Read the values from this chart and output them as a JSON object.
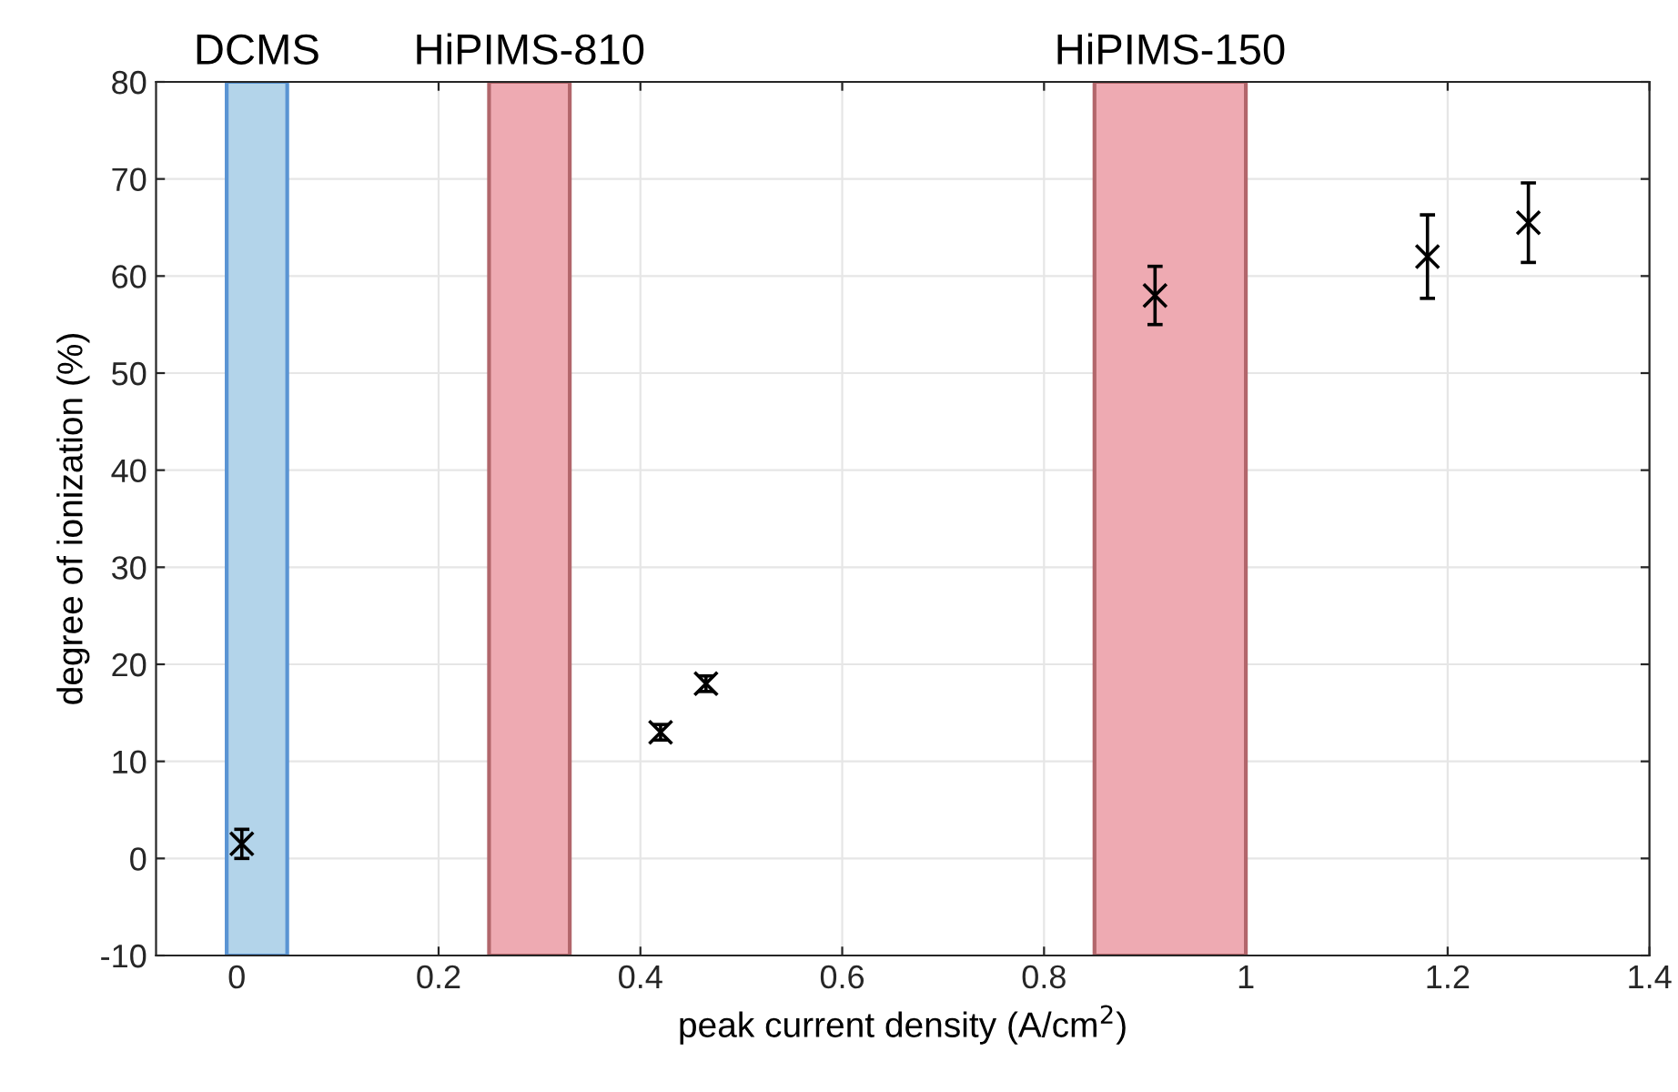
{
  "chart_data": {
    "type": "scatter",
    "xlabel": "peak current density (A/cm$^{2}$)",
    "ylabel": "degree of ionization (%)",
    "x": [
      0.005,
      0.42,
      0.465,
      0.91,
      1.18,
      1.28
    ],
    "series": [
      {
        "color": "#000000",
        "values": [
          1.5,
          13,
          18,
          58,
          62,
          65.5
        ],
        "errors": [
          1.5,
          0.8,
          0.8,
          3,
          4.3,
          4.1
        ]
      }
    ],
    "marker": "cross",
    "grid": true,
    "xlim": [
      -0.08,
      1.4
    ],
    "xticks": [
      0,
      0.2,
      0.4,
      0.6,
      0.8,
      {
        "value": 1,
        "label": "1"
      },
      1.2,
      1.4
    ],
    "ylim": [
      -10,
      80
    ],
    "yticks": [
      -10,
      0,
      10,
      20,
      30,
      40,
      50,
      60,
      70,
      80
    ],
    "bands": [
      {
        "axis": "x",
        "from": -0.01,
        "to": 0.05,
        "label": "DCMS",
        "color": "#b3d4ea"
      },
      {
        "axis": "x",
        "from": 0.25,
        "to": 0.33,
        "label": "HiPIMS-810",
        "color": "#eeaab2"
      },
      {
        "axis": "x",
        "from": 0.85,
        "to": 1.0,
        "label": "HiPIMS-150",
        "color": "#eeaab2"
      }
    ]
  }
}
